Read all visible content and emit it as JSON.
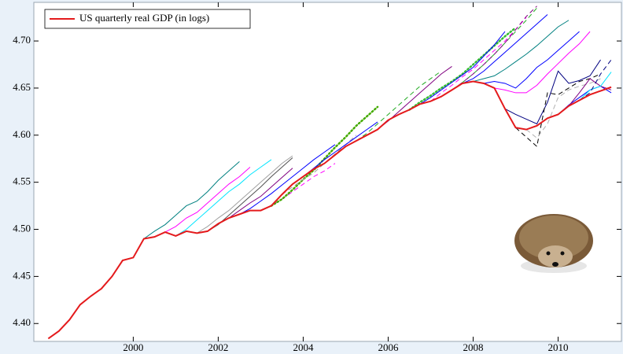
{
  "chart_data": {
    "type": "line",
    "xlim": [
      1997.66,
      2011.49
    ],
    "ylim": [
      4.381,
      4.741
    ],
    "xticks": [
      2000,
      2002,
      2004,
      2006,
      2008,
      2010
    ],
    "yticks": [
      {
        "value": 4.4,
        "label": "4.40"
      },
      {
        "value": 4.45,
        "label": "4.45"
      },
      {
        "value": 4.5,
        "label": "4.50"
      },
      {
        "value": 4.55,
        "label": "4.55"
      },
      {
        "value": 4.6,
        "label": "4.60"
      },
      {
        "value": 4.65,
        "label": "4.65"
      },
      {
        "value": 4.7,
        "label": "4.70"
      }
    ],
    "grid": false,
    "legend": "top-left",
    "series": [
      {
        "name": "US quarterly real GDP (in logs)",
        "color": "#e41a1c",
        "dash": "solid",
        "x": [
          1998,
          1998.25,
          1998.5,
          1998.75,
          1999,
          1999.25,
          1999.5,
          1999.75,
          2000,
          2000.25,
          2000.5,
          2000.75,
          2001,
          2001.25,
          2001.5,
          2001.75,
          2002,
          2002.25,
          2002.5,
          2002.75,
          2003,
          2003.25,
          2003.5,
          2003.75,
          2004,
          2004.25,
          2004.5,
          2004.75,
          2005,
          2005.25,
          2005.5,
          2005.75,
          2006,
          2006.25,
          2006.5,
          2006.75,
          2007,
          2007.25,
          2007.5,
          2007.75,
          2008,
          2008.25,
          2008.5,
          2008.75,
          2009,
          2009.25,
          2009.5,
          2009.75,
          2010,
          2010.25,
          2010.5,
          2010.75,
          2011,
          2011.25
        ],
        "values": [
          4.384,
          4.392,
          4.404,
          4.42,
          4.429,
          4.437,
          4.45,
          4.467,
          4.47,
          4.49,
          4.492,
          4.497,
          4.493,
          4.498,
          4.496,
          4.498,
          4.506,
          4.512,
          4.516,
          4.52,
          4.52,
          4.525,
          4.537,
          4.548,
          4.556,
          4.564,
          4.57,
          4.579,
          4.588,
          4.594,
          4.6,
          4.606,
          4.616,
          4.622,
          4.627,
          4.633,
          4.636,
          4.641,
          4.648,
          4.655,
          4.657,
          4.655,
          4.65,
          4.628,
          4.608,
          4.606,
          4.61,
          4.618,
          4.622,
          4.631,
          4.637,
          4.643,
          4.647,
          4.651
        ]
      },
      {
        "color": "#008080",
        "dash": "solid",
        "x": [
          2000.25,
          2000.5,
          2000.75,
          2001,
          2001.25,
          2001.5,
          2001.75,
          2002,
          2002.25,
          2002.5
        ],
        "values": [
          4.49,
          4.498,
          4.505,
          4.515,
          4.525,
          4.53,
          4.54,
          4.552,
          4.562,
          4.572
        ]
      },
      {
        "color": "#00e5ff",
        "dash": "solid",
        "x": [
          2001,
          2001.25,
          2001.5,
          2001.75,
          2002,
          2002.25,
          2002.5,
          2002.75,
          2003,
          2003.25
        ],
        "values": [
          4.493,
          4.5,
          4.51,
          4.52,
          4.53,
          4.54,
          4.548,
          4.558,
          4.566,
          4.574
        ]
      },
      {
        "color": "#ff00ff",
        "dash": "solid",
        "x": [
          2000.75,
          2001,
          2001.25,
          2001.5,
          2001.75,
          2002,
          2002.25,
          2002.5,
          2002.75
        ],
        "values": [
          4.497,
          4.503,
          4.512,
          4.518,
          4.528,
          4.538,
          4.548,
          4.556,
          4.566
        ]
      },
      {
        "color": "#a0a0a0",
        "dash": "solid",
        "x": [
          2001.5,
          2001.75,
          2002,
          2002.25,
          2002.5,
          2002.75,
          2003,
          2003.25,
          2003.5,
          2003.75
        ],
        "values": [
          4.496,
          4.503,
          4.512,
          4.52,
          4.53,
          4.54,
          4.55,
          4.56,
          4.57,
          4.578
        ]
      },
      {
        "color": "#505050",
        "dash": "solid",
        "x": [
          2001.75,
          2002,
          2002.25,
          2002.5,
          2002.75,
          2003,
          2003.25,
          2003.5,
          2003.75
        ],
        "values": [
          4.498,
          4.505,
          4.515,
          4.525,
          4.535,
          4.545,
          4.556,
          4.566,
          4.576
        ]
      },
      {
        "color": "#800080",
        "dash": "solid",
        "x": [
          2002,
          2002.25,
          2002.5,
          2002.75,
          2003,
          2003.25,
          2003.5,
          2003.75
        ],
        "values": [
          4.506,
          4.512,
          4.52,
          4.528,
          4.535,
          4.545,
          4.555,
          4.565
        ]
      },
      {
        "color": "#0000ff",
        "dash": "solid",
        "x": [
          2002.5,
          2002.75,
          2003,
          2003.25,
          2003.5,
          2003.75,
          2004,
          2004.25,
          2004.5,
          2004.75
        ],
        "values": [
          4.516,
          4.522,
          4.53,
          4.538,
          4.547,
          4.556,
          4.565,
          4.574,
          4.582,
          4.59
        ]
      },
      {
        "color": "#ff00ff",
        "dash": "dashed",
        "x": [
          2003,
          2003.25,
          2003.5,
          2003.75,
          2004,
          2004.25,
          2004.5,
          2004.75
        ],
        "values": [
          4.52,
          4.525,
          4.532,
          4.54,
          4.548,
          4.556,
          4.562,
          4.57
        ]
      },
      {
        "color": "#44aa00",
        "dash": "dotted",
        "x": [
          2003.25,
          2003.5,
          2003.75,
          2004,
          2004.25,
          2004.5,
          2004.75,
          2005,
          2005.25,
          2005.5,
          2005.75
        ],
        "values": [
          4.525,
          4.532,
          4.542,
          4.553,
          4.563,
          4.575,
          4.587,
          4.598,
          4.61,
          4.62,
          4.63
        ]
      },
      {
        "color": "#a0a0a0",
        "dash": "dashed",
        "x": [
          2003.5,
          2003.75,
          2004,
          2004.25,
          2004.5,
          2004.75,
          2005,
          2005.25
        ],
        "values": [
          4.537,
          4.545,
          4.553,
          4.56,
          4.57,
          4.58,
          4.59,
          4.6
        ]
      },
      {
        "color": "#0000ff",
        "dash": "solid",
        "x": [
          2004,
          2004.25,
          2004.5,
          2004.75,
          2005,
          2005.25,
          2005.5,
          2005.75
        ],
        "values": [
          4.556,
          4.565,
          4.574,
          4.582,
          4.59,
          4.598,
          4.606,
          4.614
        ]
      },
      {
        "color": "#22aa22",
        "dash": "dashed",
        "x": [
          2005.25,
          2005.5,
          2005.75,
          2006,
          2006.25,
          2006.5,
          2006.75,
          2007,
          2007.25
        ],
        "values": [
          4.594,
          4.602,
          4.612,
          4.622,
          4.632,
          4.642,
          4.652,
          4.66,
          4.668
        ]
      },
      {
        "color": "#800080",
        "dash": "solid",
        "x": [
          2005.75,
          2006,
          2006.25,
          2006.5,
          2006.75,
          2007,
          2007.25,
          2007.5
        ],
        "values": [
          4.606,
          4.615,
          4.625,
          4.635,
          4.645,
          4.655,
          4.665,
          4.673
        ]
      },
      {
        "color": "#33bb33",
        "dash": "dotted",
        "x": [
          2006.5,
          2006.75,
          2007,
          2007.25,
          2007.5,
          2007.75,
          2008,
          2008.25,
          2008.5,
          2008.75,
          2009
        ],
        "values": [
          4.627,
          4.635,
          4.642,
          4.65,
          4.657,
          4.665,
          4.675,
          4.685,
          4.695,
          4.705,
          4.714
        ]
      },
      {
        "color": "#0000ff",
        "dash": "solid",
        "x": [
          2006.75,
          2007,
          2007.25,
          2007.5,
          2007.75,
          2008,
          2008.25,
          2008.5,
          2008.75
        ],
        "values": [
          4.633,
          4.64,
          4.648,
          4.656,
          4.664,
          4.672,
          4.684,
          4.696,
          4.71
        ]
      },
      {
        "color": "#ff00ff",
        "dash": "dashed",
        "x": [
          2007,
          2007.25,
          2007.5,
          2007.75,
          2008,
          2008.25,
          2008.5,
          2008.75,
          2009,
          2009.25
        ],
        "values": [
          4.636,
          4.645,
          4.653,
          4.662,
          4.67,
          4.68,
          4.69,
          4.7,
          4.712,
          4.725
        ]
      },
      {
        "color": "#22aa22",
        "dash": "dashed",
        "x": [
          2007.25,
          2007.5,
          2007.75,
          2008,
          2008.25,
          2008.5,
          2008.75,
          2009,
          2009.25,
          2009.5
        ],
        "values": [
          4.641,
          4.648,
          4.656,
          4.665,
          4.675,
          4.686,
          4.698,
          4.71,
          4.722,
          4.735
        ]
      },
      {
        "color": "#800080",
        "dash": "dashed",
        "x": [
          2007.5,
          2007.75,
          2008,
          2008.25,
          2008.5,
          2008.75,
          2009,
          2009.25,
          2009.5
        ],
        "values": [
          4.648,
          4.656,
          4.665,
          4.675,
          4.686,
          4.698,
          4.712,
          4.726,
          4.737
        ]
      },
      {
        "color": "#0000ff",
        "dash": "solid",
        "x": [
          2007.75,
          2008,
          2008.25,
          2008.5,
          2008.75,
          2009,
          2009.25,
          2009.5,
          2009.75
        ],
        "values": [
          4.655,
          4.66,
          4.668,
          4.678,
          4.688,
          4.698,
          4.708,
          4.718,
          4.728
        ]
      },
      {
        "color": "#008080",
        "dash": "solid",
        "x": [
          2008,
          2008.25,
          2008.5,
          2008.75,
          2009,
          2009.25,
          2009.5,
          2009.75,
          2010,
          2010.25
        ],
        "values": [
          4.657,
          4.66,
          4.663,
          4.67,
          4.678,
          4.686,
          4.695,
          4.705,
          4.715,
          4.722
        ]
      },
      {
        "color": "#0000ff",
        "dash": "solid",
        "x": [
          2008.25,
          2008.5,
          2008.75,
          2009,
          2009.25,
          2009.5,
          2009.75,
          2010,
          2010.25,
          2010.5
        ],
        "values": [
          4.655,
          4.657,
          4.655,
          4.65,
          4.66,
          4.672,
          4.68,
          4.69,
          4.7,
          4.71
        ]
      },
      {
        "color": "#ff00ff",
        "dash": "solid",
        "x": [
          2008.5,
          2008.75,
          2009,
          2009.25,
          2009.5,
          2009.75,
          2010,
          2010.25,
          2010.5,
          2010.75
        ],
        "values": [
          4.65,
          4.648,
          4.645,
          4.645,
          4.653,
          4.665,
          4.676,
          4.687,
          4.697,
          4.71
        ]
      },
      {
        "color": "#000080",
        "dash": "solid",
        "x": [
          2008.75,
          2009,
          2009.25,
          2009.5,
          2009.75,
          2010,
          2010.25,
          2010.5,
          2010.75,
          2011
        ],
        "values": [
          4.628,
          4.622,
          4.617,
          4.612,
          4.635,
          4.668,
          4.655,
          4.658,
          4.663,
          4.68
        ]
      },
      {
        "color": "#000000",
        "dash": "dashed",
        "x": [
          2009,
          2009.25,
          2009.5,
          2009.75,
          2010,
          2010.25,
          2010.5,
          2010.75,
          2011
        ],
        "values": [
          4.608,
          4.598,
          4.588,
          4.645,
          4.643,
          4.65,
          4.657,
          4.66,
          4.665
        ]
      },
      {
        "color": "#b0b0b0",
        "dash": "dashed",
        "x": [
          2009.25,
          2009.5,
          2009.75,
          2010,
          2010.25,
          2010.5,
          2010.75,
          2011
        ],
        "values": [
          4.606,
          4.597,
          4.612,
          4.64,
          4.648,
          4.652,
          4.655,
          4.66
        ]
      },
      {
        "color": "#0000ff",
        "dash": "solid",
        "x": [
          2010,
          2010.25,
          2010.5,
          2010.75,
          2011,
          2011.25
        ],
        "values": [
          4.622,
          4.632,
          4.64,
          4.648,
          4.652,
          4.645
        ]
      },
      {
        "color": "#800080",
        "dash": "solid",
        "x": [
          2010.25,
          2010.5,
          2010.75,
          2011,
          2011.25
        ],
        "values": [
          4.631,
          4.645,
          4.66,
          4.652,
          4.648
        ]
      },
      {
        "color": "#00e5ff",
        "dash": "solid",
        "x": [
          2010.5,
          2010.75,
          2011,
          2011.25
        ],
        "values": [
          4.637,
          4.648,
          4.652,
          4.667
        ]
      },
      {
        "color": "#000080",
        "dash": "dashed",
        "x": [
          2010.5,
          2010.75,
          2011,
          2011.25
        ],
        "values": [
          4.637,
          4.645,
          4.665,
          4.68
        ]
      }
    ]
  }
}
